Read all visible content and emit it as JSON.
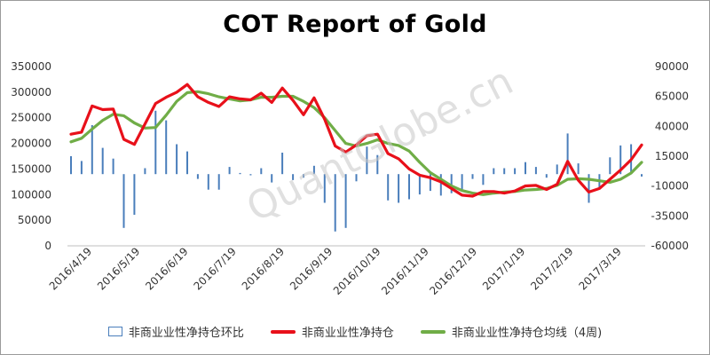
{
  "chart_data": {
    "type": "bar+line",
    "title": "COT Report of Gold",
    "x_labels": [
      "2016/4/19",
      "2016/5/19",
      "2016/6/19",
      "2016/7/19",
      "2016/8/19",
      "2016/9/19",
      "2016/10/19",
      "2016/11/19",
      "2016/12/19",
      "2017/1/19",
      "2017/2/19",
      "2017/3/19"
    ],
    "y_left": {
      "min": 0,
      "max": 350000,
      "ticks": [
        "0",
        "50000",
        "100000",
        "150000",
        "200000",
        "250000",
        "300000",
        "350000"
      ]
    },
    "y_right": {
      "min": -60000,
      "max": 90000,
      "ticks": [
        "-60000",
        "-35000",
        "-10000",
        "15000",
        "40000",
        "65000",
        "90000"
      ]
    },
    "series": [
      {
        "name": "非商业业性净持仓环比",
        "axis": "right",
        "kind": "bar",
        "color": "#4a7ebb",
        "values": [
          15000,
          11000,
          41000,
          22000,
          13000,
          -45000,
          -34000,
          5000,
          53000,
          45000,
          25000,
          19000,
          -4000,
          -13000,
          -13000,
          6000,
          1000,
          -1000,
          5000,
          -7000,
          18000,
          -5000,
          -3000,
          7000,
          -24000,
          -48000,
          -45000,
          -6000,
          23000,
          16000,
          -22000,
          -24000,
          -21000,
          -17000,
          -14000,
          -18000,
          -16000,
          -13000,
          -4000,
          -9000,
          5000,
          5000,
          5000,
          10000,
          6000,
          -3000,
          8000,
          34000,
          9000,
          -24000,
          -11000,
          14000,
          24000,
          25000,
          -2000
        ]
      },
      {
        "name": "非商业业性净持仓",
        "axis": "left",
        "kind": "line",
        "color": "#e8101a",
        "values": [
          218000,
          222000,
          273000,
          266000,
          267000,
          208000,
          198000,
          238000,
          278000,
          290000,
          300000,
          315000,
          291000,
          280000,
          272000,
          291000,
          287000,
          285000,
          298000,
          280000,
          308000,
          284000,
          256000,
          289000,
          247000,
          195000,
          183000,
          197000,
          215000,
          218000,
          180000,
          170000,
          150000,
          138000,
          133000,
          125000,
          112000,
          99000,
          97000,
          106000,
          106000,
          103000,
          107000,
          117000,
          118000,
          110000,
          120000,
          165000,
          128000,
          105000,
          112000,
          130000,
          148000,
          168000,
          197000
        ]
      },
      {
        "name": "非商业业性净持仓均线（4周)",
        "axis": "left",
        "kind": "line",
        "color": "#70ad47",
        "values": [
          203000,
          210000,
          228000,
          245000,
          257000,
          254000,
          240000,
          230000,
          231000,
          255000,
          282000,
          299000,
          301000,
          297000,
          291000,
          287000,
          283000,
          285000,
          290000,
          290000,
          292000,
          292000,
          282000,
          270000,
          250000,
          225000,
          200000,
          195000,
          200000,
          207000,
          200000,
          196000,
          185000,
          163000,
          143000,
          130000,
          117000,
          108000,
          103000,
          100000,
          103000,
          105000,
          106000,
          109000,
          110000,
          112000,
          118000,
          130000,
          131000,
          130000,
          127000,
          124000,
          130000,
          142000,
          163000
        ]
      }
    ],
    "legend": [
      "非商业业性净持仓环比",
      "非商业业性净持仓",
      "非商业业性净持仓均线（4周)"
    ],
    "legend_position": "bottom",
    "grid": false,
    "watermark": "QuantGlobe.cn"
  }
}
